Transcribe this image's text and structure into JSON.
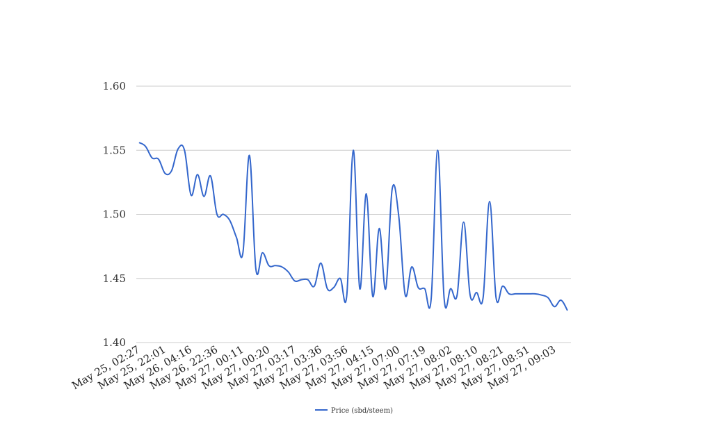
{
  "chart_data": {
    "type": "line",
    "title": "",
    "xlabel": "",
    "ylabel": "",
    "x_tick_labels": [
      "May 25, 02:27",
      "May 25, 22:01",
      "May 26, 04:16",
      "May 26, 22:36",
      "May 27, 00:11",
      "May 27, 00:20",
      "May 27, 03:17",
      "May 27, 03:36",
      "May 27, 03:56",
      "May 27, 04:15",
      "May 27, 07:00",
      "May 27, 07:19",
      "May 27, 08:02",
      "May 27, 08:10",
      "May 27, 08:21",
      "May 27, 08:51",
      "May 27, 09:03"
    ],
    "ylim": [
      1.4,
      1.6
    ],
    "y_ticks": [
      1.4,
      1.45,
      1.5,
      1.55,
      1.6
    ],
    "y_tick_labels": [
      "1.40",
      "1.45",
      "1.50",
      "1.55",
      "1.60"
    ],
    "grid": "horizontal",
    "legend_position": "bottom",
    "line_color": "#3366cc",
    "grid_color": "#cccccc",
    "series": [
      {
        "name": "Price (sbd/steem)",
        "values": [
          1.556,
          1.553,
          1.544,
          1.543,
          1.532,
          1.534,
          1.551,
          1.55,
          1.515,
          1.531,
          1.514,
          1.53,
          1.5,
          1.5,
          1.495,
          1.482,
          1.47,
          1.546,
          1.457,
          1.47,
          1.46,
          1.46,
          1.459,
          1.455,
          1.448,
          1.449,
          1.449,
          1.444,
          1.462,
          1.442,
          1.443,
          1.45,
          1.437,
          1.55,
          1.442,
          1.516,
          1.436,
          1.489,
          1.442,
          1.52,
          1.499,
          1.437,
          1.459,
          1.443,
          1.442,
          1.434,
          1.55,
          1.434,
          1.442,
          1.437,
          1.494,
          1.437,
          1.439,
          1.435,
          1.51,
          1.435,
          1.444,
          1.438,
          1.438,
          1.438,
          1.438,
          1.438,
          1.437,
          1.435,
          1.428,
          1.433,
          1.425
        ]
      }
    ]
  }
}
